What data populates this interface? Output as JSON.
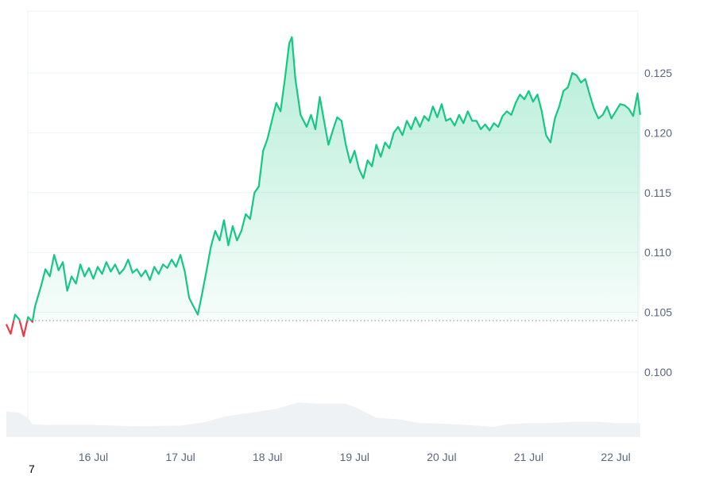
{
  "chart_data": {
    "type": "area",
    "title": "",
    "xlabel": "",
    "ylabel": "",
    "x_ticks": [
      "16 Jul",
      "17 Jul",
      "18 Jul",
      "19 Jul",
      "20 Jul",
      "21 Jul",
      "22 Jul"
    ],
    "y_ticks": [
      "0.100",
      "0.105",
      "0.110",
      "0.115",
      "0.120",
      "0.125"
    ],
    "ylim": [
      0.095,
      0.13
    ],
    "baseline": 0.1043,
    "colors": {
      "up_line": "#16c784",
      "down_line": "#ea3943",
      "volume_fill": "#eff2f5",
      "grid": "#eff2f5",
      "baseline": "#888888"
    },
    "series": [
      {
        "values": [
          [
            15.0,
            0.104
          ],
          [
            15.05,
            0.1032
          ],
          [
            15.1,
            0.1048
          ],
          [
            15.15,
            0.1044
          ],
          [
            15.2,
            0.103
          ],
          [
            15.25,
            0.1046
          ],
          [
            15.3,
            0.1042
          ],
          [
            15.33,
            0.1055
          ],
          [
            15.4,
            0.1072
          ],
          [
            15.45,
            0.1086
          ],
          [
            15.5,
            0.108
          ],
          [
            15.55,
            0.1098
          ],
          [
            15.6,
            0.1085
          ],
          [
            15.65,
            0.1092
          ],
          [
            15.7,
            0.1068
          ],
          [
            15.75,
            0.108
          ],
          [
            15.8,
            0.1074
          ],
          [
            15.85,
            0.109
          ],
          [
            15.9,
            0.108
          ],
          [
            15.95,
            0.1087
          ],
          [
            16.0,
            0.1078
          ],
          [
            16.05,
            0.1088
          ],
          [
            16.1,
            0.1082
          ],
          [
            16.15,
            0.1092
          ],
          [
            16.2,
            0.1084
          ],
          [
            16.25,
            0.109
          ],
          [
            16.3,
            0.1082
          ],
          [
            16.35,
            0.1086
          ],
          [
            16.4,
            0.1094
          ],
          [
            16.45,
            0.1083
          ],
          [
            16.5,
            0.1086
          ],
          [
            16.55,
            0.108
          ],
          [
            16.6,
            0.1085
          ],
          [
            16.65,
            0.1077
          ],
          [
            16.7,
            0.1088
          ],
          [
            16.75,
            0.1082
          ],
          [
            16.8,
            0.109
          ],
          [
            16.85,
            0.1087
          ],
          [
            16.9,
            0.1094
          ],
          [
            16.95,
            0.1088
          ],
          [
            17.0,
            0.1098
          ],
          [
            17.05,
            0.1084
          ],
          [
            17.1,
            0.1062
          ],
          [
            17.15,
            0.1055
          ],
          [
            17.2,
            0.1048
          ],
          [
            17.25,
            0.1066
          ],
          [
            17.3,
            0.1085
          ],
          [
            17.35,
            0.1105
          ],
          [
            17.4,
            0.1118
          ],
          [
            17.45,
            0.111
          ],
          [
            17.5,
            0.1127
          ],
          [
            17.55,
            0.1106
          ],
          [
            17.6,
            0.1122
          ],
          [
            17.65,
            0.111
          ],
          [
            17.7,
            0.1118
          ],
          [
            17.75,
            0.1132
          ],
          [
            17.8,
            0.1128
          ],
          [
            17.85,
            0.115
          ],
          [
            17.9,
            0.1155
          ],
          [
            17.95,
            0.1185
          ],
          [
            18.0,
            0.1195
          ],
          [
            18.05,
            0.121
          ],
          [
            18.1,
            0.1225
          ],
          [
            18.15,
            0.1218
          ],
          [
            18.2,
            0.1245
          ],
          [
            18.25,
            0.1275
          ],
          [
            18.28,
            0.128
          ],
          [
            18.32,
            0.1245
          ],
          [
            18.38,
            0.1215
          ],
          [
            18.45,
            0.1205
          ],
          [
            18.5,
            0.1215
          ],
          [
            18.55,
            0.1203
          ],
          [
            18.6,
            0.123
          ],
          [
            18.65,
            0.121
          ],
          [
            18.7,
            0.119
          ],
          [
            18.75,
            0.1202
          ],
          [
            18.8,
            0.1213
          ],
          [
            18.85,
            0.121
          ],
          [
            18.9,
            0.119
          ],
          [
            18.95,
            0.1175
          ],
          [
            19.0,
            0.1185
          ],
          [
            19.05,
            0.117
          ],
          [
            19.1,
            0.1162
          ],
          [
            19.15,
            0.1177
          ],
          [
            19.2,
            0.1172
          ],
          [
            19.25,
            0.119
          ],
          [
            19.3,
            0.118
          ],
          [
            19.35,
            0.1192
          ],
          [
            19.4,
            0.1187
          ],
          [
            19.45,
            0.12
          ],
          [
            19.5,
            0.1205
          ],
          [
            19.55,
            0.1198
          ],
          [
            19.6,
            0.121
          ],
          [
            19.65,
            0.1203
          ],
          [
            19.7,
            0.1213
          ],
          [
            19.75,
            0.1205
          ],
          [
            19.8,
            0.1214
          ],
          [
            19.85,
            0.121
          ],
          [
            19.9,
            0.1222
          ],
          [
            19.95,
            0.1213
          ],
          [
            20.0,
            0.1224
          ],
          [
            20.05,
            0.121
          ],
          [
            20.1,
            0.1212
          ],
          [
            20.15,
            0.1206
          ],
          [
            20.2,
            0.1215
          ],
          [
            20.25,
            0.1208
          ],
          [
            20.3,
            0.1218
          ],
          [
            20.35,
            0.121
          ],
          [
            20.4,
            0.121
          ],
          [
            20.45,
            0.1203
          ],
          [
            20.5,
            0.1207
          ],
          [
            20.55,
            0.1202
          ],
          [
            20.6,
            0.1208
          ],
          [
            20.65,
            0.1205
          ],
          [
            20.7,
            0.1214
          ],
          [
            20.75,
            0.1218
          ],
          [
            20.8,
            0.1215
          ],
          [
            20.85,
            0.1225
          ],
          [
            20.9,
            0.1232
          ],
          [
            20.95,
            0.1228
          ],
          [
            21.0,
            0.1235
          ],
          [
            21.05,
            0.1226
          ],
          [
            21.1,
            0.1232
          ],
          [
            21.15,
            0.1218
          ],
          [
            21.2,
            0.1198
          ],
          [
            21.25,
            0.1192
          ],
          [
            21.3,
            0.1212
          ],
          [
            21.35,
            0.1222
          ],
          [
            21.4,
            0.1235
          ],
          [
            21.45,
            0.1238
          ],
          [
            21.5,
            0.125
          ],
          [
            21.55,
            0.1248
          ],
          [
            21.6,
            0.1242
          ],
          [
            21.65,
            0.1245
          ],
          [
            21.7,
            0.1232
          ],
          [
            21.75,
            0.122
          ],
          [
            21.8,
            0.1212
          ],
          [
            21.85,
            0.1215
          ],
          [
            21.9,
            0.1222
          ],
          [
            21.95,
            0.1212
          ],
          [
            22.0,
            0.1218
          ],
          [
            22.05,
            0.1224
          ],
          [
            22.1,
            0.1223
          ],
          [
            22.15,
            0.122
          ],
          [
            22.2,
            0.1214
          ],
          [
            22.25,
            0.1233
          ],
          [
            22.28,
            0.1215
          ]
        ]
      }
    ],
    "volume": [
      [
        15.0,
        0.4
      ],
      [
        15.15,
        0.38
      ],
      [
        15.25,
        0.3
      ],
      [
        15.3,
        0.2
      ],
      [
        15.5,
        0.19
      ],
      [
        16.0,
        0.19
      ],
      [
        16.5,
        0.17
      ],
      [
        17.0,
        0.18
      ],
      [
        17.3,
        0.24
      ],
      [
        17.5,
        0.32
      ],
      [
        17.8,
        0.38
      ],
      [
        18.1,
        0.44
      ],
      [
        18.25,
        0.5
      ],
      [
        18.35,
        0.54
      ],
      [
        18.6,
        0.52
      ],
      [
        18.9,
        0.52
      ],
      [
        19.05,
        0.44
      ],
      [
        19.25,
        0.3
      ],
      [
        19.5,
        0.28
      ],
      [
        19.75,
        0.22
      ],
      [
        20.0,
        0.21
      ],
      [
        20.3,
        0.19
      ],
      [
        20.6,
        0.16
      ],
      [
        20.75,
        0.2
      ],
      [
        21.0,
        0.22
      ],
      [
        21.2,
        0.22
      ],
      [
        21.5,
        0.24
      ],
      [
        21.8,
        0.24
      ],
      [
        22.0,
        0.22
      ],
      [
        22.28,
        0.22
      ]
    ]
  },
  "corner_label": "7"
}
